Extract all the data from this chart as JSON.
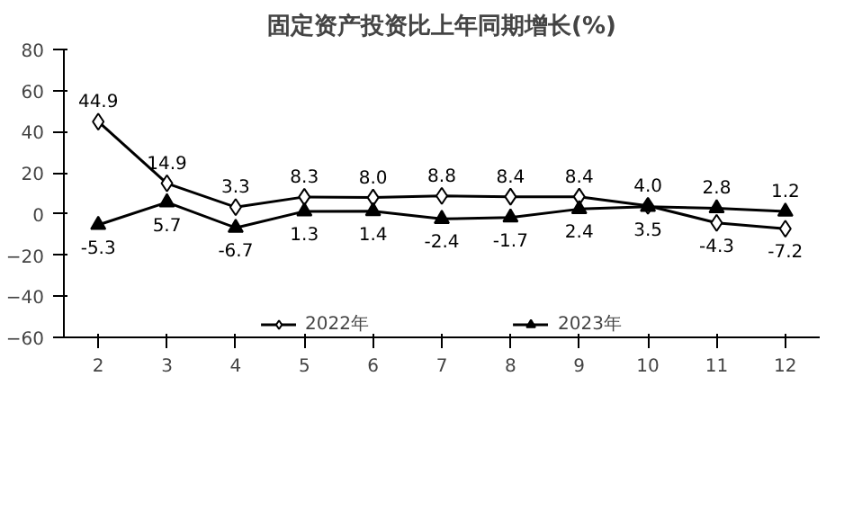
{
  "chart_data": {
    "type": "line",
    "title": "固定资产投资比上年同期增长(%)",
    "categories": [
      "2",
      "3",
      "4",
      "5",
      "6",
      "7",
      "8",
      "9",
      "10",
      "11",
      "12"
    ],
    "ylim": [
      -60,
      80
    ],
    "yticks": [
      -60,
      -40,
      -20,
      0,
      20,
      40,
      60,
      80
    ],
    "grid": false,
    "legend": "bottom",
    "series": [
      {
        "name": "2022年",
        "color": "#000000",
        "marker": "diamond",
        "values": [
          44.9,
          14.9,
          3.3,
          8.3,
          8.0,
          8.8,
          8.4,
          8.4,
          4.0,
          -4.3,
          -7.2
        ],
        "value_labels": [
          "44.9",
          "14.9",
          "3.3",
          "8.3",
          "8.0",
          "8.8",
          "8.4",
          "8.4",
          "4.0",
          "-4.3",
          "-7.2"
        ]
      },
      {
        "name": "2023年",
        "color": "#000000",
        "marker": "triangle",
        "values": [
          -5.3,
          5.7,
          -6.7,
          1.3,
          1.4,
          -2.4,
          -1.7,
          2.4,
          3.5,
          2.8,
          1.2
        ],
        "value_labels": [
          "-5.3",
          "5.7",
          "-6.7",
          "1.3",
          "1.4",
          "-2.4",
          "-1.7",
          "2.4",
          "3.5",
          "2.8",
          "1.2"
        ]
      }
    ]
  }
}
